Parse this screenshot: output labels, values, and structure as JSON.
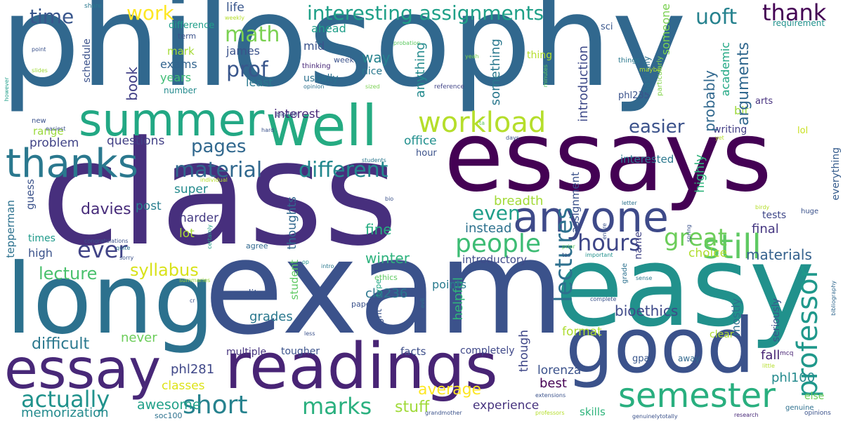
{
  "words": [
    {
      "text": "philosophy",
      "color": "#31688e"
    },
    {
      "text": "class",
      "color": "#472f7d"
    },
    {
      "text": "exam",
      "color": "#3b528b"
    },
    {
      "text": "essays",
      "color": "#440154"
    },
    {
      "text": "easy",
      "color": "#21918c"
    },
    {
      "text": "long",
      "color": "#2c718e"
    },
    {
      "text": "good",
      "color": "#3b528b"
    },
    {
      "text": "readings",
      "color": "#482475"
    },
    {
      "text": "essay",
      "color": "#482878"
    },
    {
      "text": "well",
      "color": "#25ab82"
    },
    {
      "text": "summer",
      "color": "#22a884"
    },
    {
      "text": "anyone",
      "color": "#3e4a89"
    },
    {
      "text": "thanks",
      "color": "#2a788e"
    },
    {
      "text": "still",
      "color": "#5ec962"
    },
    {
      "text": "semester",
      "color": "#29af7f"
    },
    {
      "text": "workload",
      "color": "#b5de2b"
    },
    {
      "text": "hours",
      "color": "#3f4788"
    },
    {
      "text": "great",
      "color": "#6ccd5a"
    },
    {
      "text": "people",
      "color": "#3dbc74"
    },
    {
      "text": "lectures",
      "color": "#2d708e"
    },
    {
      "text": "professor",
      "color": "#1f988b"
    },
    {
      "text": "short",
      "color": "#26828e"
    },
    {
      "text": "marks",
      "color": "#2ab07f"
    },
    {
      "text": "actually",
      "color": "#20928c"
    },
    {
      "text": "ever",
      "color": "#414487"
    },
    {
      "text": "material",
      "color": "#31688e"
    },
    {
      "text": "different",
      "color": "#23888e"
    },
    {
      "text": "math",
      "color": "#7ad151"
    },
    {
      "text": "prof",
      "color": "#39568c"
    },
    {
      "text": "interesting assignments",
      "color": "#1fa088"
    },
    {
      "text": "thank",
      "color": "#440154"
    },
    {
      "text": "uoft",
      "color": "#26828e"
    },
    {
      "text": "time",
      "color": "#39568c"
    },
    {
      "text": "work",
      "color": "#fde725"
    },
    {
      "text": "easier",
      "color": "#3b528b"
    },
    {
      "text": "pages",
      "color": "#31688e"
    },
    {
      "text": "even",
      "color": "#1f9e89"
    },
    {
      "text": "syllabus",
      "color": "#d8e219"
    },
    {
      "text": "lecture",
      "color": "#4ac16d"
    },
    {
      "text": "difficult",
      "color": "#2a788e"
    },
    {
      "text": "davies",
      "color": "#472c7a"
    },
    {
      "text": "average",
      "color": "#fde725"
    },
    {
      "text": "stuff",
      "color": "#a0da39"
    },
    {
      "text": "memorization",
      "color": "#238a8d"
    },
    {
      "text": "awesome",
      "color": "#1fa088"
    },
    {
      "text": "bioethics",
      "color": "#3e4989"
    },
    {
      "text": "materials",
      "color": "#34618d"
    },
    {
      "text": "best",
      "color": "#440154"
    },
    {
      "text": "lorenza",
      "color": "#3b528b"
    },
    {
      "text": "phl100",
      "color": "#238a8d"
    },
    {
      "text": "phl281",
      "color": "#3f4788"
    },
    {
      "text": "classes",
      "color": "#dde318"
    },
    {
      "text": "experience",
      "color": "#46337e"
    },
    {
      "text": "final",
      "color": "#453781"
    },
    {
      "text": "fall",
      "color": "#482475"
    },
    {
      "text": "winter",
      "color": "#2db27d"
    },
    {
      "text": "fine",
      "color": "#27ad81"
    },
    {
      "text": "instead",
      "color": "#2c718e"
    },
    {
      "text": "breadth",
      "color": "#a2da37"
    },
    {
      "text": "questions",
      "color": "#424086"
    },
    {
      "text": "problem",
      "color": "#414487"
    },
    {
      "text": "post",
      "color": "#287d8e"
    },
    {
      "text": "super",
      "color": "#238a8d"
    },
    {
      "text": "lot",
      "color": "#a8db34"
    },
    {
      "text": "harder",
      "color": "#443a83"
    },
    {
      "text": "high",
      "color": "#3b528b"
    },
    {
      "text": "times",
      "color": "#1f9a8a"
    },
    {
      "text": "never",
      "color": "#6ccd5a"
    },
    {
      "text": "grades",
      "color": "#2a788e"
    },
    {
      "text": "edit",
      "color": "#3a538b"
    },
    {
      "text": "cla236",
      "color": "#2a768e"
    },
    {
      "text": "helpful",
      "color": "#30b57a"
    },
    {
      "text": "though",
      "color": "#3f4788"
    },
    {
      "text": "format",
      "color": "#addc30"
    },
    {
      "text": "completely",
      "color": "#3f4889"
    },
    {
      "text": "facts",
      "color": "#3d4e8a"
    },
    {
      "text": "tougher",
      "color": "#3b528b"
    },
    {
      "text": "multiple",
      "color": "#46337e"
    },
    {
      "text": "skills",
      "color": "#2fb47c"
    },
    {
      "text": "range",
      "color": "#9bd93c"
    },
    {
      "text": "interest",
      "color": "#482878"
    },
    {
      "text": "writing",
      "color": "#433e85"
    },
    {
      "text": "tests",
      "color": "#3f4788"
    },
    {
      "text": "choice",
      "color": "#b0dd2f"
    },
    {
      "text": "mostly",
      "color": "#2d708e"
    },
    {
      "text": "points",
      "color": "#297b8e"
    },
    {
      "text": "office",
      "color": "#218f8d"
    },
    {
      "text": "hour",
      "color": "#3b528b"
    },
    {
      "text": "introductory",
      "color": "#3e4a89"
    },
    {
      "text": "arts",
      "color": "#46307e"
    },
    {
      "text": "bit",
      "color": "#9dd93b"
    },
    {
      "text": "lol",
      "color": "#c8e020"
    },
    {
      "text": "clear",
      "color": "#b0dd2f"
    },
    {
      "text": "name",
      "color": "#414487"
    },
    {
      "text": "interested",
      "color": "#2a788e"
    },
    {
      "text": "everything",
      "color": "#365c8d"
    },
    {
      "text": "seriously",
      "color": "#3a548c"
    },
    {
      "text": "else",
      "color": "#6ece58"
    },
    {
      "text": "genuine",
      "color": "#2d708e"
    },
    {
      "text": "mcq",
      "color": "#482475"
    },
    {
      "text": "gpa",
      "color": "#39568c"
    },
    {
      "text": "away",
      "color": "#31688e"
    },
    {
      "text": "way",
      "color": "#25838e"
    },
    {
      "text": "nice",
      "color": "#2a788e"
    },
    {
      "text": "usually",
      "color": "#2c718e"
    },
    {
      "text": "mid",
      "color": "#3b528b"
    },
    {
      "text": "week",
      "color": "#3b528b"
    },
    {
      "text": "ahead",
      "color": "#1f9e89"
    },
    {
      "text": "james",
      "color": "#3b528b"
    },
    {
      "text": "least",
      "color": "#2a788e"
    },
    {
      "text": "years",
      "color": "#3dbc74"
    },
    {
      "text": "number",
      "color": "#238a8d"
    },
    {
      "text": "exams",
      "color": "#32648e"
    },
    {
      "text": "mark",
      "color": "#a5db36"
    },
    {
      "text": "term",
      "color": "#3b528b"
    },
    {
      "text": "difference",
      "color": "#1f9e89"
    },
    {
      "text": "life",
      "color": "#39568c"
    },
    {
      "text": "weekly",
      "color": "#b5de2b"
    },
    {
      "text": "book",
      "color": "#424086"
    },
    {
      "text": "schedule",
      "color": "#3b528b"
    },
    {
      "text": "anything",
      "color": "#238a8d"
    },
    {
      "text": "something",
      "color": "#2a788e"
    },
    {
      "text": "introduction",
      "color": "#3e4a89"
    },
    {
      "text": "someone",
      "color": "#7ad151"
    },
    {
      "text": "academic",
      "color": "#22a884"
    },
    {
      "text": "probably",
      "color": "#31688e"
    },
    {
      "text": "arguments",
      "color": "#31688e"
    },
    {
      "text": "highly",
      "color": "#2fb47c"
    },
    {
      "text": "phl235",
      "color": "#3b528b"
    },
    {
      "text": "basically",
      "color": "#2c718e"
    },
    {
      "text": "particularly",
      "color": "#84d44b"
    },
    {
      "text": "thing",
      "color": "#b5de2b"
    },
    {
      "text": "things",
      "color": "#2a788e"
    },
    {
      "text": "maybe",
      "color": "#b5de2b"
    },
    {
      "text": "sci",
      "color": "#39568c"
    },
    {
      "text": "requirement",
      "color": "#21918c"
    },
    {
      "text": "probation",
      "color": "#5ec962"
    },
    {
      "text": "share",
      "color": "#2a788e"
    },
    {
      "text": "point",
      "color": "#3b528b"
    },
    {
      "text": "slides",
      "color": "#a0da39"
    },
    {
      "text": "however",
      "color": "#1f9e89"
    },
    {
      "text": "thinking",
      "color": "#482878"
    },
    {
      "text": "opinion",
      "color": "#2c718e"
    },
    {
      "text": "sized",
      "color": "#7ad151"
    },
    {
      "text": "reference",
      "color": "#414487"
    },
    {
      "text": "yeah",
      "color": "#7ad151"
    },
    {
      "text": "minutes",
      "color": "#5ec962"
    },
    {
      "text": "bio230",
      "color": "#3b528b"
    },
    {
      "text": "hard",
      "color": "#3b528b"
    },
    {
      "text": "easiest",
      "color": "#3b528b"
    },
    {
      "text": "new",
      "color": "#3b528b"
    },
    {
      "text": "ta",
      "color": "#5ec962"
    },
    {
      "text": "days",
      "color": "#3b528b"
    },
    {
      "text": "yet",
      "color": "#b5de2b"
    },
    {
      "text": "students",
      "color": "#2a788e"
    },
    {
      "text": "individual",
      "color": "#b5de2b"
    },
    {
      "text": "student",
      "color": "#5ec962"
    },
    {
      "text": "thoughts",
      "color": "#31688e"
    },
    {
      "text": "assignment",
      "color": "#3b528b"
    },
    {
      "text": "guess",
      "color": "#3b528b"
    },
    {
      "text": "tepperman",
      "color": "#2c718e"
    },
    {
      "text": "agree",
      "color": "#31688e"
    },
    {
      "text": "ethics",
      "color": "#5ec962"
    },
    {
      "text": "op",
      "color": "#21918c"
    },
    {
      "text": "bio",
      "color": "#3b528b"
    },
    {
      "text": "letter",
      "color": "#2c718e"
    },
    {
      "text": "spring",
      "color": "#3b528b"
    },
    {
      "text": "birdy",
      "color": "#b5de2b"
    },
    {
      "text": "huge",
      "color": "#3b528b"
    },
    {
      "text": "congratulations",
      "color": "#3b528b"
    },
    {
      "text": "quite",
      "color": "#2c718e"
    },
    {
      "text": "sorry",
      "color": "#3b528b"
    },
    {
      "text": "summaries",
      "color": "#a0da39"
    },
    {
      "text": "intro",
      "color": "#2a788e"
    },
    {
      "text": "certainly",
      "color": "#1f9e89"
    },
    {
      "text": "cr",
      "color": "#3b528b"
    },
    {
      "text": "paper",
      "color": "#3b528b"
    },
    {
      "text": "type",
      "color": "#22a884"
    },
    {
      "text": "right",
      "color": "#3b528b"
    },
    {
      "text": "evil",
      "color": "#2c718e"
    },
    {
      "text": "less",
      "color": "#3b528b"
    },
    {
      "text": "prior",
      "color": "#5ec962"
    },
    {
      "text": "tas",
      "color": "#3b528b"
    },
    {
      "text": "important",
      "color": "#21918c"
    },
    {
      "text": "entire",
      "color": "#3b528b"
    },
    {
      "text": "grade",
      "color": "#2c718e"
    },
    {
      "text": "sense",
      "color": "#2a788e"
    },
    {
      "text": "complete",
      "color": "#3b528b"
    },
    {
      "text": "bibliography",
      "color": "#31688e"
    },
    {
      "text": "little",
      "color": "#b5de2b"
    },
    {
      "text": "extensions",
      "color": "#3b528b"
    },
    {
      "text": "professors",
      "color": "#b5de2b"
    },
    {
      "text": "grandmother",
      "color": "#3b528b"
    },
    {
      "text": "soc100",
      "color": "#2c718e"
    },
    {
      "text": "genuinelytotally",
      "color": "#3b528b"
    },
    {
      "text": "research",
      "color": "#482878"
    },
    {
      "text": "opinions",
      "color": "#3b528b"
    }
  ]
}
